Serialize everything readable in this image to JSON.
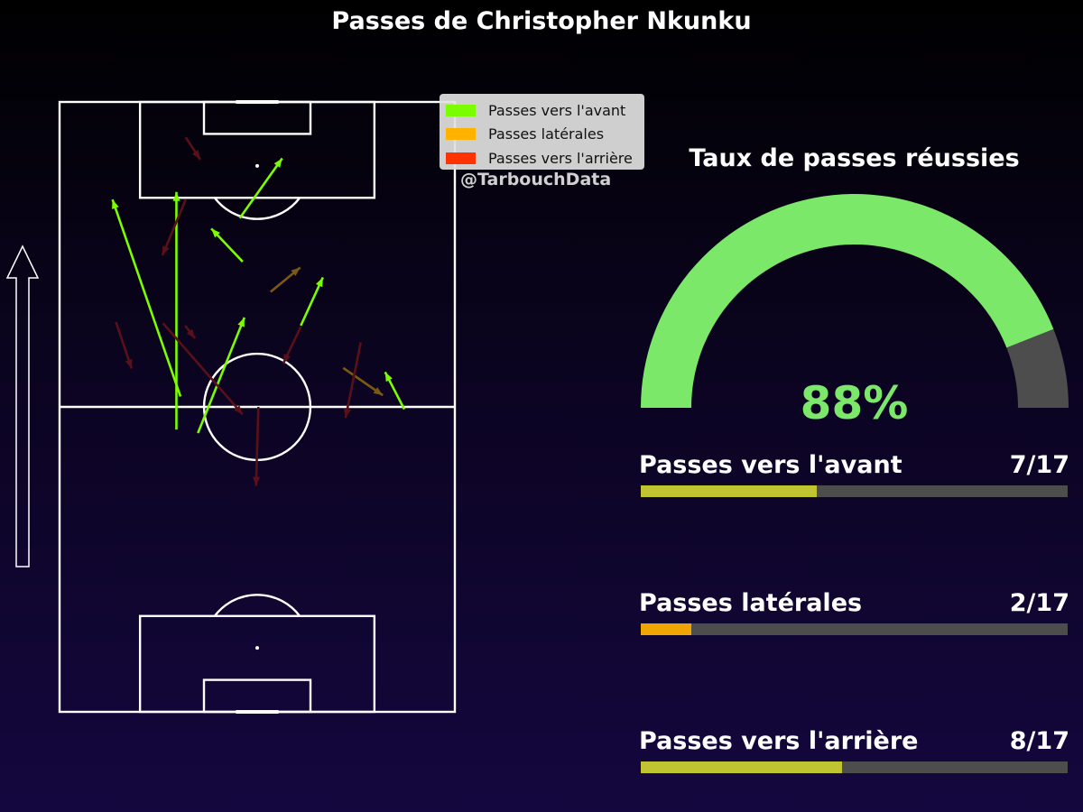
{
  "title": "Passes de Christopher Nkunku",
  "watermark": "@TarbouchData",
  "legend": [
    {
      "label": "Passes vers l'avant",
      "color": "#7cfc00"
    },
    {
      "label": "Passes latérales",
      "color": "#ffb300"
    },
    {
      "label": "Passes vers l'arrière",
      "color": "#ff3300"
    }
  ],
  "gauge": {
    "title": "Taux de passes réussies",
    "value_label": "88%",
    "value": 0.88,
    "fill_color": "#7ce86a",
    "rest_color": "#4d4d4d"
  },
  "stats": [
    {
      "label": "Passes vers l'avant",
      "count_label": "7/17",
      "fraction": 0.4118,
      "color": "#c0c430"
    },
    {
      "label": "Passes latérales",
      "count_label": "2/17",
      "fraction": 0.1176,
      "color": "#f0a500"
    },
    {
      "label": "Passes vers l'arrière",
      "count_label": "8/17",
      "fraction": 0.4706,
      "color": "#c0c430"
    }
  ],
  "chart_data": {
    "type": "pass-map",
    "pitch_length": 105,
    "pitch_width": 68,
    "attack_direction": "up",
    "passes": [
      {
        "category": "forward",
        "x0": 20.8,
        "y0": 54.3,
        "x1": 9.1,
        "y1": 88.2
      },
      {
        "category": "forward",
        "x0": 20.1,
        "y0": 48.6,
        "x1": 20.1,
        "y1": 89.5
      },
      {
        "category": "forward",
        "x0": 31.5,
        "y0": 77.5,
        "x1": 26.1,
        "y1": 83.2
      },
      {
        "category": "forward",
        "x0": 31.0,
        "y0": 85.0,
        "x1": 38.3,
        "y1": 95.3
      },
      {
        "category": "forward",
        "x0": 41.5,
        "y0": 66.5,
        "x1": 45.3,
        "y1": 74.8
      },
      {
        "category": "forward",
        "x0": 23.8,
        "y0": 48.0,
        "x1": 31.8,
        "y1": 67.9
      },
      {
        "category": "forward",
        "x0": 59.3,
        "y0": 52.1,
        "x1": 56.0,
        "y1": 58.5
      },
      {
        "category": "lateral",
        "x0": 36.3,
        "y0": 72.3,
        "x1": 41.4,
        "y1": 76.5
      },
      {
        "category": "lateral",
        "x0": 48.8,
        "y0": 59.2,
        "x1": 55.6,
        "y1": 54.5
      },
      {
        "category": "backward",
        "x0": 21.7,
        "y0": 98.9,
        "x1": 24.2,
        "y1": 95.1
      },
      {
        "category": "backward",
        "x0": 21.7,
        "y0": 88.2,
        "x1": 17.7,
        "y1": 78.6
      },
      {
        "category": "backward",
        "x0": 9.7,
        "y0": 67.1,
        "x1": 12.4,
        "y1": 59.1
      },
      {
        "category": "backward",
        "x0": 17.8,
        "y0": 66.9,
        "x1": 31.5,
        "y1": 51.2
      },
      {
        "category": "backward",
        "x0": 41.5,
        "y0": 66.3,
        "x1": 38.5,
        "y1": 60.0
      },
      {
        "category": "backward",
        "x0": 51.8,
        "y0": 63.6,
        "x1": 49.2,
        "y1": 50.6
      },
      {
        "category": "backward",
        "x0": 34.2,
        "y0": 52.5,
        "x1": 33.8,
        "y1": 38.9
      },
      {
        "category": "backward",
        "x0": 21.6,
        "y0": 66.5,
        "x1": 23.3,
        "y1": 64.3
      }
    ]
  }
}
